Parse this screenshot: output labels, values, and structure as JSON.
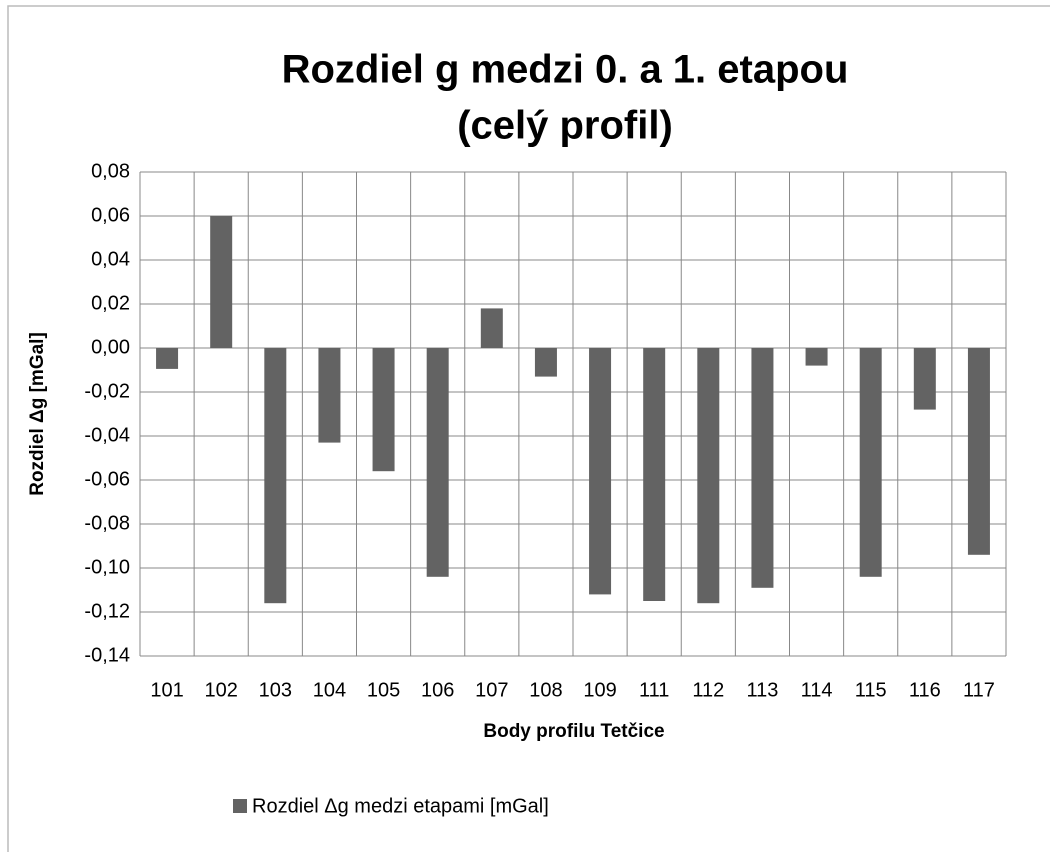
{
  "chart_data": {
    "type": "bar",
    "title": [
      "Rozdiel g medzi 0. a 1. etapou",
      "(celý profil)"
    ],
    "x_label": "Body profilu Tetčice",
    "y_label": "Rozdiel Δg [mGal]",
    "categories": [
      "101",
      "102",
      "103",
      "104",
      "105",
      "106",
      "107",
      "108",
      "109",
      "111",
      "112",
      "113",
      "114",
      "115",
      "116",
      "117"
    ],
    "series": [
      {
        "name": "Rozdiel Δg medzi etapami [mGal]",
        "color": "#636363",
        "values": [
          -0.0095,
          0.06,
          -0.116,
          -0.043,
          -0.056,
          -0.104,
          0.018,
          -0.013,
          -0.112,
          -0.115,
          -0.116,
          -0.109,
          -0.008,
          -0.104,
          -0.028,
          -0.094
        ]
      }
    ],
    "ylim": [
      -0.14,
      0.08
    ],
    "yticks": [
      {
        "value": -0.14,
        "label": "-0,14"
      },
      {
        "value": -0.12,
        "label": "-0,12"
      },
      {
        "value": -0.1,
        "label": "-0,10"
      },
      {
        "value": -0.08,
        "label": "-0,08"
      },
      {
        "value": -0.06,
        "label": "-0,06"
      },
      {
        "value": -0.04,
        "label": "-0,04"
      },
      {
        "value": -0.02,
        "label": "-0,02"
      },
      {
        "value": 0,
        "label": "0,00"
      },
      {
        "value": 0.02,
        "label": "0,02"
      },
      {
        "value": 0.04,
        "label": "0,04"
      },
      {
        "value": 0.06,
        "label": "0,06"
      },
      {
        "value": 0.08,
        "label": "0,08"
      }
    ],
    "grid": true,
    "legend": "bottom"
  }
}
